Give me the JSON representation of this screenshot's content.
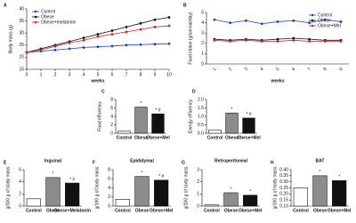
{
  "chart_data": [
    {
      "type": "line",
      "panel": "A",
      "y_label": "Body mass (g)",
      "x_label": "weeks",
      "x": [
        0,
        1,
        2,
        3,
        4,
        5,
        6,
        7,
        8,
        9,
        10
      ],
      "xlim": [
        0,
        10
      ],
      "xticks": [
        0,
        1,
        2,
        3,
        4,
        5,
        6,
        7,
        8,
        9,
        10
      ],
      "ylim": [
        15,
        40
      ],
      "yticks": [
        15,
        20,
        25,
        30,
        35,
        40
      ],
      "legend": "top-left",
      "series": [
        {
          "name": "Control",
          "color": "#1f3fd0",
          "values": [
            22,
            22.5,
            23,
            23.5,
            24,
            24.3,
            24.6,
            25,
            25.2,
            25.4,
            25.6
          ]
        },
        {
          "name": "Obese",
          "color": "#111111",
          "values": [
            22,
            23.5,
            25,
            26.5,
            28,
            29.5,
            31,
            32.5,
            34,
            35.5,
            36.5
          ]
        },
        {
          "name": "Obese+melatonin",
          "color": "#e02020",
          "values": [
            22,
            23,
            24.5,
            26,
            27,
            28.5,
            29.5,
            30.5,
            31.5,
            32.5,
            33
          ]
        }
      ]
    },
    {
      "type": "line",
      "panel": "B",
      "y_label": "Food intake (g/animal/day)",
      "x_label": "weeks",
      "categories": [
        "1",
        "2",
        "3",
        "4",
        "5",
        "6",
        "7",
        "8",
        "9"
      ],
      "ylim": [
        0,
        5
      ],
      "yticks": [
        0,
        1,
        2,
        3,
        4,
        5
      ],
      "legend": "top-right",
      "series": [
        {
          "name": "Control",
          "color": "#1f3fd0",
          "values": [
            4.3,
            4.0,
            4.2,
            3.9,
            4.1,
            4.2,
            4.0,
            4.3,
            4.1
          ]
        },
        {
          "name": "Obese",
          "color": "#111111",
          "values": [
            2.4,
            2.3,
            2.4,
            2.3,
            2.4,
            2.5,
            2.4,
            2.3,
            2.3
          ]
        },
        {
          "name": "Obese+Mel",
          "color": "#e02020",
          "values": [
            2.3,
            2.2,
            2.3,
            2.2,
            2.2,
            2.3,
            2.2,
            2.2,
            2.2
          ]
        }
      ]
    },
    {
      "type": "bar",
      "panel": "C",
      "y_label": "Food efficiency",
      "categories": [
        "Control",
        "Obese",
        "Obese+Mel"
      ],
      "values": [
        0.5,
        6.2,
        4.6
      ],
      "colors": [
        "#ffffff",
        "#8c8c8c",
        "#111111"
      ],
      "markers": [
        null,
        "*",
        "* #"
      ],
      "ylim": [
        0,
        8
      ],
      "yticks": [
        0,
        2,
        4,
        6,
        8
      ]
    },
    {
      "type": "bar",
      "panel": "D",
      "y_label": "Energy efficiency",
      "categories": [
        "Control",
        "Obese",
        "Obese+Mel"
      ],
      "values": [
        0.2,
        1.2,
        0.9
      ],
      "colors": [
        "#ffffff",
        "#8c8c8c",
        "#111111"
      ],
      "markers": [
        null,
        "*",
        "* #"
      ],
      "ylim": [
        0,
        2
      ],
      "yticks": [
        {
          "value": 0,
          "label": "0.0"
        },
        {
          "value": 0.5,
          "label": "0.5"
        },
        {
          "value": 1,
          "label": "1.0"
        },
        {
          "value": 1.5,
          "label": "1.5"
        },
        {
          "value": 2,
          "label": "2.0"
        }
      ]
    },
    {
      "type": "bar",
      "panel": "E",
      "title": "Inguinal",
      "y_label": "g/100 g of body mass",
      "categories": [
        "Control",
        "Obese",
        "Obese+Melatonin"
      ],
      "values": [
        1.2,
        4.7,
        3.8
      ],
      "colors": [
        "#ffffff",
        "#8c8c8c",
        "#111111"
      ],
      "markers": [
        null,
        "*",
        "* #"
      ],
      "ylim": [
        0,
        6
      ],
      "yticks": [
        0,
        2,
        4,
        6
      ]
    },
    {
      "type": "bar",
      "panel": "F",
      "title": "Epididymal",
      "y_label": "g/100 g of body mass",
      "categories": [
        "Control",
        "Obese",
        "Obese+Mel"
      ],
      "values": [
        1.5,
        6.5,
        5.7
      ],
      "colors": [
        "#ffffff",
        "#8c8c8c",
        "#111111"
      ],
      "markers": [
        null,
        "*",
        "* #"
      ],
      "ylim": [
        0,
        8
      ],
      "yticks": [
        0,
        2,
        4,
        6,
        8
      ]
    },
    {
      "type": "bar",
      "panel": "G",
      "title": "Retroperitoneal",
      "y_label": "g/100 g of body mass",
      "categories": [
        "Control",
        "Obese",
        "Obese+Mel"
      ],
      "values": [
        0.1,
        1.1,
        0.9
      ],
      "colors": [
        "#ffffff",
        "#8c8c8c",
        "#111111"
      ],
      "markers": [
        null,
        "*",
        "*"
      ],
      "ylim": [
        0,
        3
      ],
      "yticks": [
        0,
        1,
        2,
        3
      ]
    },
    {
      "type": "bar",
      "panel": "H",
      "title": "BAT",
      "y_label": "g/100 g of body mass",
      "categories": [
        "Control",
        "Obese",
        "Obese+Mel"
      ],
      "values": [
        0.25,
        0.35,
        0.31
      ],
      "colors": [
        "#ffffff",
        "#8c8c8c",
        "#111111"
      ],
      "markers": [
        null,
        "*",
        "*"
      ],
      "ylim": [
        0.1,
        0.4
      ],
      "yticks": [
        {
          "value": 0.1,
          "label": "0.10"
        },
        {
          "value": 0.15,
          "label": "0.15"
        },
        {
          "value": 0.2,
          "label": "0.20"
        },
        {
          "value": 0.25,
          "label": "0.25"
        },
        {
          "value": 0.3,
          "label": "0.30"
        },
        {
          "value": 0.35,
          "label": "0.35"
        },
        {
          "value": 0.4,
          "label": "0.40"
        }
      ]
    }
  ]
}
